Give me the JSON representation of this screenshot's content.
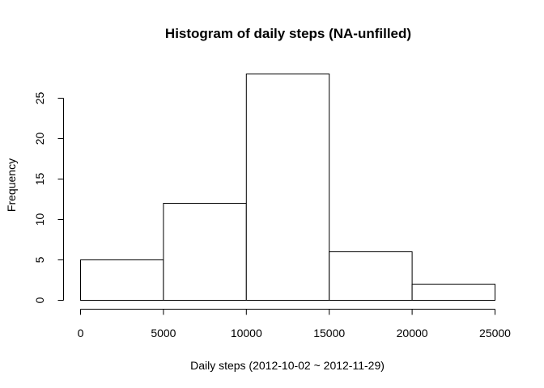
{
  "chart_data": {
    "type": "bar",
    "title": "Histogram of daily steps (NA-unfilled)",
    "xlabel": "Daily steps (2012-10-02 ~ 2012-11-29)",
    "ylabel": "Frequency",
    "bins": [
      {
        "start": 0,
        "end": 5000,
        "count": 5
      },
      {
        "start": 5000,
        "end": 10000,
        "count": 12
      },
      {
        "start": 10000,
        "end": 15000,
        "count": 28
      },
      {
        "start": 15000,
        "end": 20000,
        "count": 6
      },
      {
        "start": 20000,
        "end": 25000,
        "count": 2
      }
    ],
    "xlim": [
      0,
      25000
    ],
    "ylim": [
      0,
      28
    ],
    "x_ticks": [
      0,
      5000,
      10000,
      15000,
      20000,
      25000
    ],
    "y_ticks": [
      0,
      5,
      10,
      15,
      20,
      25
    ],
    "grid": false,
    "legend": "none",
    "bar_fill": "#ffffff",
    "bar_stroke": "#000000"
  }
}
